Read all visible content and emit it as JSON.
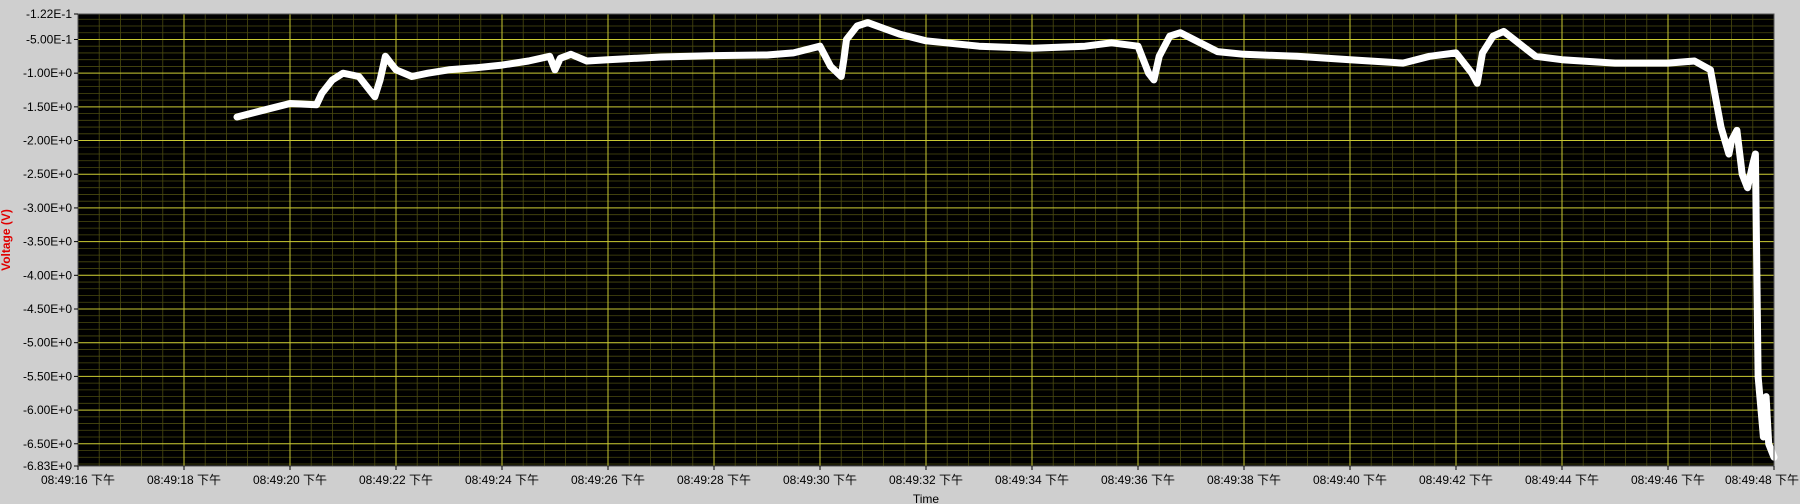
{
  "chart_data": {
    "type": "line",
    "title": "",
    "xlabel": "Time",
    "ylabel": "Voltage (V)",
    "xlim": [
      0,
      32
    ],
    "ylim": [
      -6.83,
      -0.122
    ],
    "y_ticks": [
      {
        "value": -0.122,
        "label": "-1.22E-1"
      },
      {
        "value": -0.5,
        "label": "-5.00E-1"
      },
      {
        "value": -1.0,
        "label": "-1.00E+0"
      },
      {
        "value": -1.5,
        "label": "-1.50E+0"
      },
      {
        "value": -2.0,
        "label": "-2.00E+0"
      },
      {
        "value": -2.5,
        "label": "-2.50E+0"
      },
      {
        "value": -3.0,
        "label": "-3.00E+0"
      },
      {
        "value": -3.5,
        "label": "-3.50E+0"
      },
      {
        "value": -4.0,
        "label": "-4.00E+0"
      },
      {
        "value": -4.5,
        "label": "-4.50E+0"
      },
      {
        "value": -5.0,
        "label": "-5.00E+0"
      },
      {
        "value": -5.5,
        "label": "-5.50E+0"
      },
      {
        "value": -6.0,
        "label": "-6.00E+0"
      },
      {
        "value": -6.5,
        "label": "-6.50E+0"
      },
      {
        "value": -6.83,
        "label": "-6.83E+0"
      }
    ],
    "x_ticks": [
      {
        "value": 0,
        "label": "08:49:16 下午"
      },
      {
        "value": 2,
        "label": "08:49:18 下午"
      },
      {
        "value": 4,
        "label": "08:49:20 下午"
      },
      {
        "value": 6,
        "label": "08:49:22 下午"
      },
      {
        "value": 8,
        "label": "08:49:24 下午"
      },
      {
        "value": 10,
        "label": "08:49:26 下午"
      },
      {
        "value": 12,
        "label": "08:49:28 下午"
      },
      {
        "value": 14,
        "label": "08:49:30 下午"
      },
      {
        "value": 16,
        "label": "08:49:32 下午"
      },
      {
        "value": 18,
        "label": "08:49:34 下午"
      },
      {
        "value": 20,
        "label": "08:49:36 下午"
      },
      {
        "value": 22,
        "label": "08:49:38 下午"
      },
      {
        "value": 24,
        "label": "08:49:40 下午"
      },
      {
        "value": 26,
        "label": "08:49:42 下午"
      },
      {
        "value": 28,
        "label": "08:49:44 下午"
      },
      {
        "value": 30,
        "label": "08:49:46 下午"
      },
      {
        "value": 32,
        "label": "08:49:48 下午"
      }
    ],
    "grid": true,
    "colors": {
      "plot_bg": "#000000",
      "major_grid": "#c8c832",
      "minor_grid": "#4a4a10",
      "trace": "#ffffff",
      "frame_bg": "#cfcfcf",
      "ylabel_color": "#e00000"
    },
    "series": [
      {
        "x": [
          3.0,
          3.5,
          4.0,
          4.5,
          4.6,
          4.8,
          5.0,
          5.3,
          5.6,
          5.7,
          5.8,
          5.9,
          6.0,
          6.3,
          6.6,
          7.0,
          7.5,
          8.0,
          8.5,
          8.9,
          9.0,
          9.1,
          9.3,
          9.6,
          10.0,
          11.0,
          12.0,
          13.0,
          13.5,
          14.0,
          14.2,
          14.4,
          14.45,
          14.5,
          14.7,
          14.9,
          15.5,
          16.0,
          17.0,
          18.0,
          19.0,
          19.5,
          20.0,
          20.2,
          20.3,
          20.4,
          20.6,
          20.8,
          21.5,
          22.0,
          23.0,
          24.0,
          25.0,
          25.5,
          26.0,
          26.3,
          26.4,
          26.5,
          26.7,
          26.9,
          27.5,
          28.0,
          29.0,
          30.0,
          30.5,
          30.8,
          31.0,
          31.15,
          31.2,
          31.3,
          31.4,
          31.5,
          31.6,
          31.65,
          31.7,
          31.8,
          31.85,
          31.9,
          32.0
        ],
        "y": [
          -1.65,
          -1.55,
          -1.45,
          -1.47,
          -1.3,
          -1.1,
          -1.0,
          -1.05,
          -1.35,
          -1.1,
          -0.75,
          -0.85,
          -0.95,
          -1.05,
          -1.0,
          -0.95,
          -0.92,
          -0.88,
          -0.82,
          -0.75,
          -0.95,
          -0.78,
          -0.72,
          -0.82,
          -0.8,
          -0.76,
          -0.74,
          -0.73,
          -0.7,
          -0.6,
          -0.9,
          -1.05,
          -0.8,
          -0.5,
          -0.3,
          -0.25,
          -0.42,
          -0.52,
          -0.6,
          -0.63,
          -0.6,
          -0.55,
          -0.6,
          -1.0,
          -1.1,
          -0.75,
          -0.45,
          -0.4,
          -0.68,
          -0.72,
          -0.75,
          -0.8,
          -0.85,
          -0.75,
          -0.7,
          -1.0,
          -1.15,
          -0.7,
          -0.45,
          -0.38,
          -0.75,
          -0.8,
          -0.85,
          -0.85,
          -0.82,
          -0.95,
          -1.8,
          -2.2,
          -2.0,
          -1.85,
          -2.5,
          -2.7,
          -2.35,
          -2.2,
          -5.5,
          -6.4,
          -5.8,
          -6.5,
          -6.7
        ]
      }
    ]
  }
}
